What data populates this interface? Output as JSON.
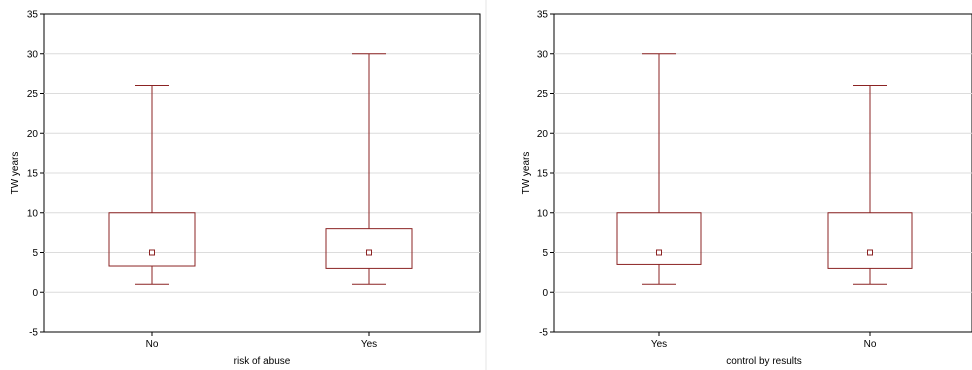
{
  "chart_data": [
    {
      "type": "box",
      "xlabel": "risk of abuse",
      "ylabel": "TW years",
      "ylim": [
        -5,
        35
      ],
      "yticks": [
        "-5",
        "0",
        "5",
        "10",
        "15",
        "20",
        "25",
        "30",
        "35"
      ],
      "grid": true,
      "categories": [
        "No",
        "Yes"
      ],
      "boxes": [
        {
          "category": "No",
          "min": 1,
          "q1": 3.3,
          "median": 5,
          "q3": 10,
          "max": 26
        },
        {
          "category": "Yes",
          "min": 1,
          "q1": 3,
          "median": 5,
          "q3": 8,
          "max": 30
        }
      ],
      "color": "#8b2323"
    },
    {
      "type": "box",
      "xlabel": "control by results",
      "ylabel": "TW years",
      "ylim": [
        -5,
        35
      ],
      "yticks": [
        "-5",
        "0",
        "5",
        "10",
        "15",
        "20",
        "25",
        "30",
        "35"
      ],
      "grid": true,
      "categories": [
        "Yes",
        "No"
      ],
      "boxes": [
        {
          "category": "Yes",
          "min": 1,
          "q1": 3.5,
          "median": 5,
          "q3": 10,
          "max": 30
        },
        {
          "category": "No",
          "min": 1,
          "q1": 3,
          "median": 5,
          "q3": 10,
          "max": 26
        }
      ],
      "color": "#8b2323"
    }
  ]
}
